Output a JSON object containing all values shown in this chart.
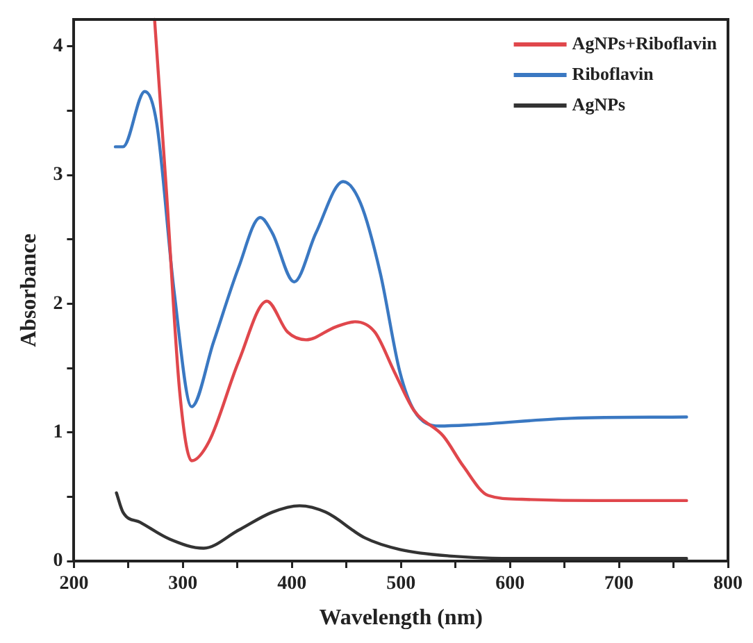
{
  "chart_data": {
    "type": "line",
    "xlabel": "Wavelength (nm)",
    "ylabel": "Absorbance",
    "xlim": [
      200,
      800
    ],
    "ylim": [
      0,
      4.21
    ],
    "xticks": [
      200,
      {
        "value": 250,
        "label": null
      },
      300,
      {
        "value": 350,
        "label": null
      },
      400,
      {
        "value": 450,
        "label": null
      },
      500,
      {
        "value": 550,
        "label": null
      },
      600,
      {
        "value": 650,
        "label": null
      },
      700,
      {
        "value": 750,
        "label": null
      },
      800
    ],
    "yticks": [
      0,
      {
        "value": 0.5,
        "label": null
      },
      1,
      {
        "value": 1.5,
        "label": null
      },
      2,
      {
        "value": 2.5,
        "label": null
      },
      3,
      {
        "value": 3.5,
        "label": null
      },
      4
    ],
    "grid": false,
    "legend": "top right",
    "marker": "none",
    "line_style": "solid",
    "series": [
      {
        "name": "AgNPs+Riboflavin",
        "color": "#e0474c",
        "x": [
          274,
          285,
          297,
          308,
          324,
          351,
          377,
          396,
          413,
          440,
          458,
          476,
          494,
          512,
          539,
          557,
          580,
          611,
          679,
          762
        ],
        "values": [
          4.21,
          2.86,
          1.32,
          0.78,
          0.93,
          1.55,
          2.02,
          1.78,
          1.72,
          1.82,
          1.86,
          1.78,
          1.47,
          1.17,
          0.97,
          0.74,
          0.51,
          0.48,
          0.47,
          0.47
        ]
      },
      {
        "name": "Riboflavin",
        "color": "#3a78c2",
        "x": [
          238,
          245,
          265,
          276,
          292,
          308,
          328,
          351,
          371,
          382,
          402,
          422,
          447,
          463,
          481,
          499,
          512,
          535,
          566,
          656,
          762
        ],
        "values": [
          3.22,
          3.22,
          3.65,
          3.4,
          2.09,
          1.2,
          1.7,
          2.28,
          2.67,
          2.55,
          2.17,
          2.55,
          2.95,
          2.78,
          2.24,
          1.47,
          1.17,
          1.05,
          1.06,
          1.11,
          1.12
        ]
      },
      {
        "name": "AgNPs",
        "color": "#333333",
        "x": [
          239,
          245,
          261,
          288,
          319,
          351,
          382,
          407,
          431,
          467,
          499,
          544,
          611,
          762
        ],
        "values": [
          0.53,
          0.38,
          0.3,
          0.17,
          0.1,
          0.24,
          0.38,
          0.43,
          0.38,
          0.18,
          0.09,
          0.04,
          0.02,
          0.02
        ]
      }
    ]
  }
}
